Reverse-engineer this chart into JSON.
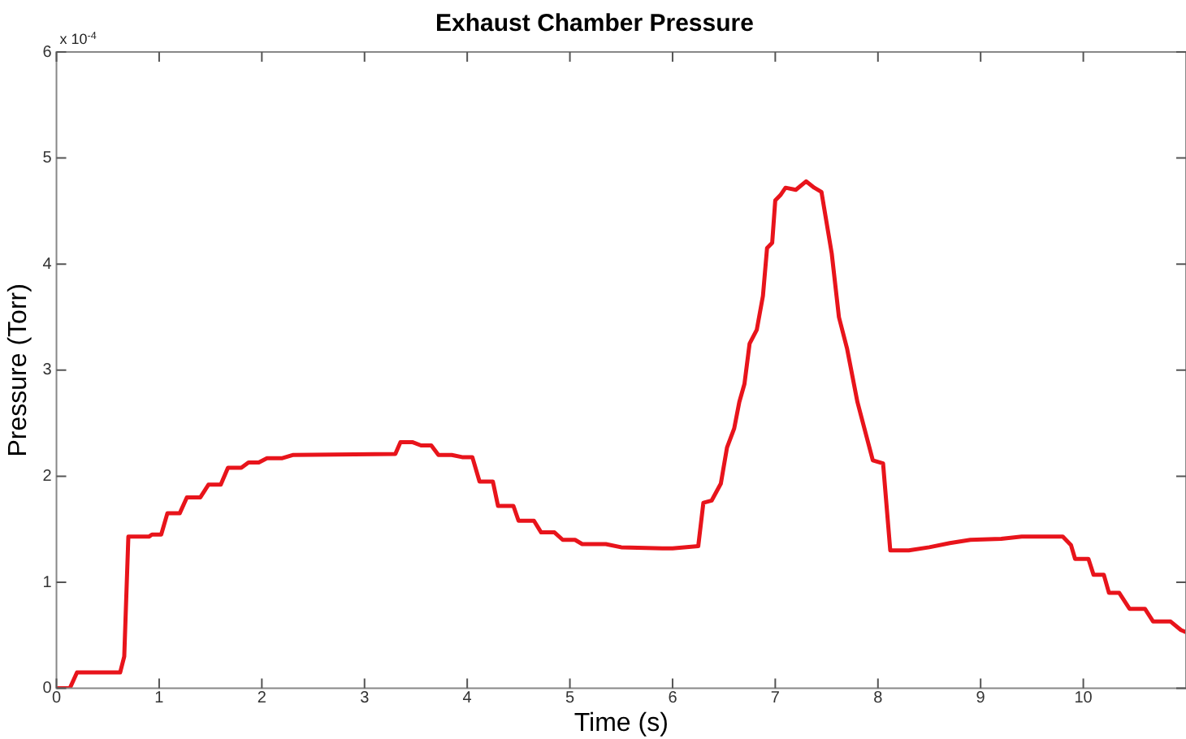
{
  "chart_data": {
    "type": "line",
    "title": "Exhaust Chamber Pressure",
    "xlabel": "Time (s)",
    "ylabel": "Pressure (Torr)",
    "annotations": [
      "x 10$^{-4}$"
    ],
    "x": [
      0,
      0.13,
      0.2,
      0.62,
      0.66,
      0.7,
      0.9,
      0.93,
      1.02,
      1.08,
      1.2,
      1.27,
      1.4,
      1.48,
      1.6,
      1.67,
      1.8,
      1.87,
      1.97,
      2.05,
      2.2,
      2.3,
      3.3,
      3.35,
      3.47,
      3.55,
      3.65,
      3.72,
      3.85,
      3.95,
      4.05,
      4.12,
      4.25,
      4.3,
      4.45,
      4.5,
      4.65,
      4.72,
      4.85,
      4.93,
      5.05,
      5.12,
      5.35,
      5.5,
      5.9,
      6.0,
      6.25,
      6.3,
      6.38,
      6.47,
      6.53,
      6.6,
      6.65,
      6.7,
      6.75,
      6.82,
      6.88,
      6.92,
      6.97,
      7.0,
      7.05,
      7.1,
      7.2,
      7.3,
      7.38,
      7.45,
      7.55,
      7.62,
      7.7,
      7.8,
      7.95,
      8.05,
      8.12,
      8.3,
      8.5,
      8.7,
      8.9,
      9.2,
      9.4,
      9.8,
      9.88,
      9.92,
      10.05,
      10.1,
      10.2,
      10.25,
      10.35,
      10.45,
      10.6,
      10.68,
      10.85,
      10.95,
      11
    ],
    "series": [
      {
        "color": "#e8141b",
        "values": [
          0,
          0,
          0.15,
          0.15,
          0.3,
          1.43,
          1.43,
          1.45,
          1.45,
          1.65,
          1.65,
          1.8,
          1.8,
          1.92,
          1.92,
          2.08,
          2.08,
          2.13,
          2.13,
          2.17,
          2.17,
          2.2,
          2.21,
          2.32,
          2.32,
          2.29,
          2.29,
          2.2,
          2.2,
          2.18,
          2.18,
          1.95,
          1.95,
          1.72,
          1.72,
          1.58,
          1.58,
          1.47,
          1.47,
          1.4,
          1.4,
          1.36,
          1.36,
          1.33,
          1.32,
          1.32,
          1.34,
          1.75,
          1.77,
          1.93,
          2.27,
          2.45,
          2.7,
          2.87,
          3.25,
          3.38,
          3.7,
          4.15,
          4.2,
          4.6,
          4.65,
          4.72,
          4.7,
          4.78,
          4.72,
          4.68,
          4.1,
          3.5,
          3.2,
          2.7,
          2.15,
          2.12,
          1.3,
          1.3,
          1.33,
          1.37,
          1.4,
          1.41,
          1.43,
          1.43,
          1.35,
          1.22,
          1.22,
          1.07,
          1.07,
          0.9,
          0.9,
          0.75,
          0.75,
          0.63,
          0.63,
          0.55,
          0.53
        ]
      }
    ],
    "xlim": [
      0,
      11
    ],
    "xticks": [
      0,
      1,
      2,
      3,
      4,
      5,
      6,
      7,
      8,
      9,
      10
    ],
    "ylim": [
      0,
      6
    ],
    "yticks": [
      0,
      1,
      2,
      3,
      4,
      5,
      6
    ],
    "grid": false,
    "legend": false,
    "marker": "none",
    "line_style": "solid"
  }
}
